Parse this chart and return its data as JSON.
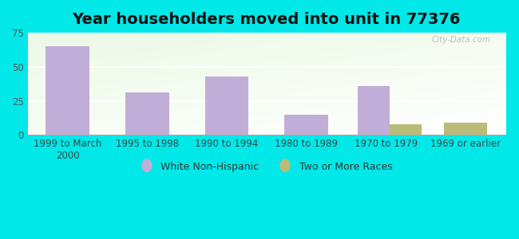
{
  "title": "Year householders moved into unit in 77376",
  "categories": [
    "1999 to March\n2000",
    "1995 to 1998",
    "1990 to 1994",
    "1980 to 1989",
    "1970 to 1979",
    "1969 or earlier"
  ],
  "white_non_hispanic": [
    65,
    31,
    43,
    15,
    36,
    0
  ],
  "two_or_more_races": [
    0,
    0,
    0,
    0,
    8,
    9
  ],
  "bar_color_white": "#c0aed8",
  "bar_color_two": "#b8bc78",
  "background_outer": "#00e8e8",
  "ylim": [
    0,
    75
  ],
  "yticks": [
    0,
    25,
    50,
    75
  ],
  "title_fontsize": 14,
  "tick_fontsize": 8.5,
  "legend_fontsize": 9,
  "watermark": "City-Data.com"
}
